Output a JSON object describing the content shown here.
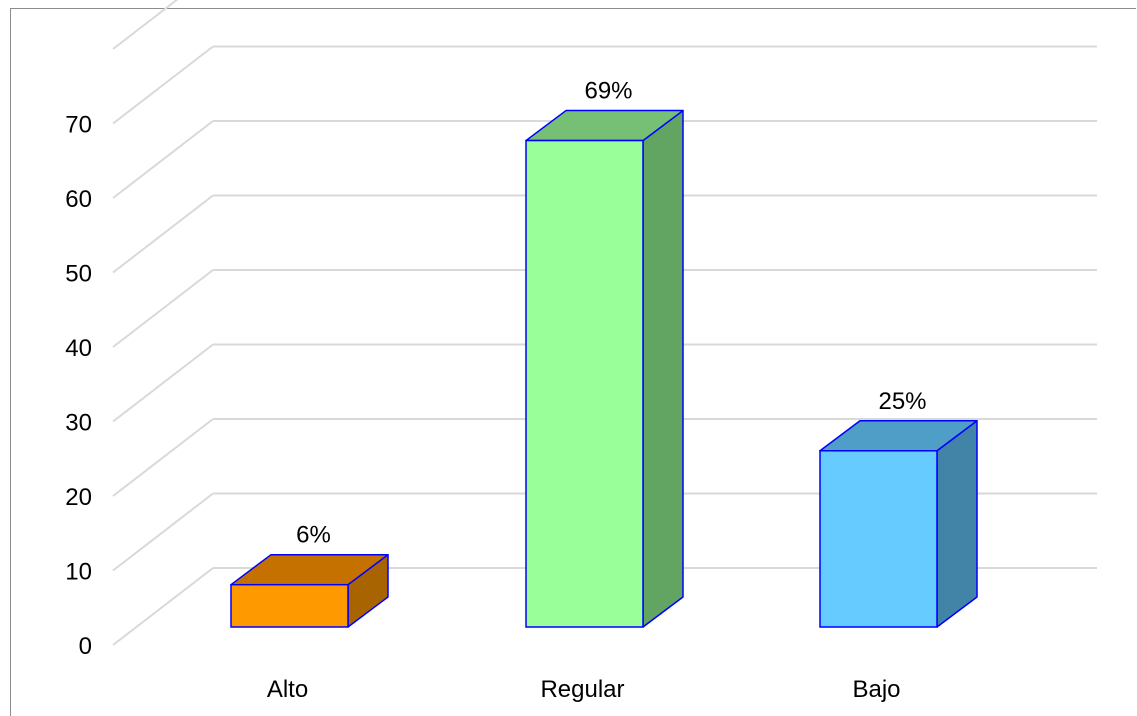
{
  "chart_data": {
    "type": "bar",
    "categories": [
      "Alto",
      "Regular",
      "Bajo"
    ],
    "values": [
      6,
      69,
      25
    ],
    "data_labels": [
      "6%",
      "69%",
      "25%"
    ],
    "ylim": [
      0,
      70
    ],
    "yticks": [
      "0",
      "10",
      "20",
      "30",
      "40",
      "50",
      "60",
      "70"
    ],
    "grid": true,
    "style": "3d-columns",
    "colors": {
      "Alto": {
        "front": "#ff9900",
        "top": "#c57100",
        "side": "#a86400"
      },
      "Regular": {
        "front": "#99ff99",
        "top": "#76c076",
        "side": "#62a462"
      },
      "Bajo": {
        "front": "#66ccff",
        "top": "#4f9ec7",
        "side": "#4284a7"
      },
      "outline": "#0000ff",
      "grid": "#d9d9d9"
    }
  }
}
